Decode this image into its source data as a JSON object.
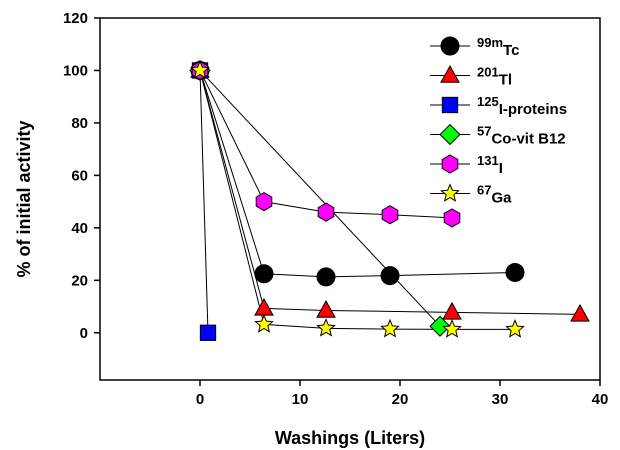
{
  "chart_data": {
    "type": "scatter",
    "title": "",
    "xlabel": "Washings (Liters)",
    "ylabel": "% of initial activity",
    "xlim": [
      -10,
      40
    ],
    "ylim": [
      -18,
      120
    ],
    "xticks": [
      0,
      10,
      20,
      30,
      40
    ],
    "yticks": [
      0,
      20,
      40,
      60,
      80,
      100,
      120
    ],
    "grid": false,
    "legend_position": "top-right",
    "series": [
      {
        "name": "99mTc",
        "legend": {
          "sup": "99m",
          "base": "Tc"
        },
        "marker": "circle",
        "color": "#000000",
        "x": [
          0,
          6.4,
          12.6,
          19.0,
          31.5
        ],
        "y": [
          100,
          22.5,
          21.3,
          21.8,
          23.0
        ]
      },
      {
        "name": "201Tl",
        "legend": {
          "sup": "201",
          "base": "Tl"
        },
        "marker": "triangle",
        "color": "#ff0000",
        "x": [
          0,
          6.4,
          12.6,
          25.2,
          38.0
        ],
        "y": [
          100,
          9.3,
          8.5,
          7.8,
          7.0
        ]
      },
      {
        "name": "125I-proteins",
        "legend": {
          "sup": "125",
          "base": "I-proteins"
        },
        "marker": "square",
        "color": "#0000ff",
        "x": [
          0,
          0.8
        ],
        "y": [
          100,
          0
        ]
      },
      {
        "name": "57Co-vit B12",
        "legend": {
          "sup": "57",
          "base": "Co-vit B12"
        },
        "marker": "diamond",
        "color": "#00ff00",
        "x": [
          0,
          24.0
        ],
        "y": [
          100,
          2.5
        ]
      },
      {
        "name": "131I",
        "legend": {
          "sup": "131",
          "base": "I"
        },
        "marker": "hexagon",
        "color": "#ff00ff",
        "x": [
          0,
          6.4,
          12.6,
          19.0,
          25.2
        ],
        "y": [
          100,
          50.0,
          46.0,
          45.0,
          43.8
        ]
      },
      {
        "name": "67Ga",
        "legend": {
          "sup": "67",
          "base": "Ga"
        },
        "marker": "star",
        "color": "#ffff00",
        "x": [
          0,
          6.4,
          12.6,
          19.0,
          25.2,
          31.5
        ],
        "y": [
          100,
          3.2,
          1.7,
          1.4,
          1.3,
          1.3
        ]
      }
    ]
  }
}
